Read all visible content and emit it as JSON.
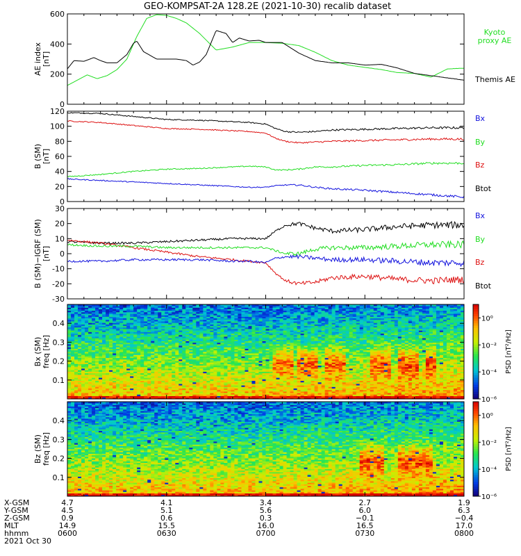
{
  "title": "GEO-KOMPSAT-2A 128.2E (2021-10-30) recalib dataset",
  "colors": {
    "black": "#000000",
    "green": "#20dd20",
    "red": "#dd1111",
    "blue": "#1111dd"
  },
  "chart_data": [
    {
      "type": "line",
      "panel": "ae",
      "ylabel": [
        "AE index",
        "[nT]"
      ],
      "ylim": [
        0,
        600
      ],
      "yticks": [
        0,
        200,
        400,
        600
      ],
      "legend": [
        {
          "label": [
            "Kyoto",
            "proxy AE"
          ],
          "color": "green"
        },
        {
          "label": [
            "Themis AE"
          ],
          "color": "black"
        }
      ],
      "series": [
        {
          "name": "Kyoto proxy AE",
          "color": "green",
          "x": [
            0,
            3,
            6,
            9,
            12,
            15,
            18,
            21,
            24,
            27,
            30,
            33,
            36,
            40,
            45,
            50,
            55,
            60,
            65,
            70,
            75,
            80,
            85,
            90,
            95,
            100,
            105,
            110,
            115,
            120
          ],
          "y": [
            125,
            160,
            195,
            170,
            190,
            230,
            300,
            450,
            570,
            595,
            590,
            570,
            540,
            470,
            360,
            380,
            410,
            410,
            405,
            390,
            345,
            290,
            260,
            245,
            230,
            210,
            205,
            180,
            235,
            240
          ]
        },
        {
          "name": "Themis AE",
          "color": "black",
          "x": [
            0,
            2,
            5,
            8,
            10,
            12,
            15,
            18,
            20,
            21,
            23,
            25,
            27,
            30,
            33,
            36,
            38,
            40,
            42,
            45,
            48,
            50,
            52,
            55,
            58,
            60,
            65,
            70,
            75,
            80,
            85,
            90,
            95,
            100,
            105,
            110,
            115,
            120
          ],
          "y": [
            235,
            290,
            285,
            310,
            290,
            275,
            275,
            330,
            405,
            420,
            350,
            325,
            300,
            300,
            300,
            290,
            260,
            280,
            330,
            490,
            470,
            410,
            440,
            420,
            425,
            410,
            410,
            340,
            290,
            275,
            275,
            260,
            265,
            240,
            205,
            190,
            175,
            160
          ]
        }
      ]
    },
    {
      "type": "line",
      "panel": "b",
      "ylabel": [
        "B (SM)",
        "[nT]"
      ],
      "ylim": [
        0,
        120
      ],
      "yticks": [
        0,
        20,
        40,
        60,
        80,
        100,
        120
      ],
      "legend": [
        {
          "label": [
            "Bx"
          ],
          "color": "blue"
        },
        {
          "label": [
            "By"
          ],
          "color": "green"
        },
        {
          "label": [
            "Bz"
          ],
          "color": "red"
        },
        {
          "label": [
            "Btot"
          ],
          "color": "black"
        }
      ],
      "series": [
        {
          "name": "Btot",
          "color": "black",
          "x": [
            0,
            10,
            20,
            30,
            40,
            50,
            55,
            60,
            63,
            66,
            70,
            75,
            80,
            90,
            100,
            110,
            120
          ],
          "y": [
            118,
            117,
            113,
            109,
            108,
            106,
            105,
            103,
            97,
            93,
            92,
            93,
            95,
            96,
            97,
            98,
            98
          ]
        },
        {
          "name": "Bz",
          "color": "red",
          "x": [
            0,
            10,
            20,
            30,
            40,
            50,
            55,
            60,
            63,
            66,
            70,
            75,
            80,
            90,
            100,
            110,
            120
          ],
          "y": [
            107,
            105,
            101,
            97,
            96,
            94,
            93,
            91,
            84,
            80,
            78,
            79,
            80,
            81,
            82,
            83,
            83
          ]
        },
        {
          "name": "By",
          "color": "green",
          "x": [
            0,
            10,
            20,
            30,
            40,
            50,
            55,
            60,
            63,
            66,
            70,
            75,
            80,
            90,
            100,
            110,
            120
          ],
          "y": [
            33,
            36,
            40,
            43,
            44,
            46,
            47,
            46,
            42,
            42,
            43,
            46,
            46,
            48,
            49,
            51,
            51
          ]
        },
        {
          "name": "Bx",
          "color": "blue",
          "x": [
            0,
            10,
            20,
            30,
            40,
            50,
            55,
            60,
            63,
            66,
            70,
            75,
            80,
            90,
            100,
            110,
            120
          ],
          "y": [
            30,
            28,
            26,
            24,
            22,
            20,
            19,
            19,
            21,
            22,
            22,
            19,
            17,
            15,
            12,
            9,
            6
          ]
        }
      ]
    },
    {
      "type": "line",
      "panel": "db",
      "ylabel": [
        "B (SM)−IGRF (SM)",
        "[nT]"
      ],
      "ylim": [
        -30,
        30
      ],
      "yticks": [
        -30,
        -20,
        -10,
        0,
        10,
        20,
        30
      ],
      "legend": [
        {
          "label": [
            "Bx"
          ],
          "color": "blue"
        },
        {
          "label": [
            "By"
          ],
          "color": "green"
        },
        {
          "label": [
            "Bz"
          ],
          "color": "red"
        },
        {
          "label": [
            "Btot"
          ],
          "color": "black"
        }
      ],
      "series": [
        {
          "name": "Btot",
          "color": "black",
          "x": [
            0,
            10,
            20,
            30,
            40,
            50,
            55,
            60,
            63,
            66,
            70,
            75,
            80,
            90,
            100,
            110,
            120
          ],
          "y": [
            8,
            7,
            7,
            8,
            9,
            10,
            10,
            10,
            15,
            19,
            20,
            17,
            15,
            16,
            18,
            19,
            19
          ]
        },
        {
          "name": "Bz",
          "color": "red",
          "x": [
            0,
            10,
            20,
            30,
            40,
            50,
            55,
            60,
            63,
            66,
            70,
            75,
            80,
            90,
            100,
            110,
            120
          ],
          "y": [
            9,
            7,
            4,
            1,
            -2,
            -4,
            -5,
            -6,
            -13,
            -18,
            -20,
            -19,
            -16,
            -15,
            -17,
            -18,
            -17
          ]
        },
        {
          "name": "By",
          "color": "green",
          "x": [
            0,
            10,
            20,
            30,
            40,
            50,
            55,
            60,
            63,
            66,
            70,
            75,
            80,
            90,
            100,
            110,
            120
          ],
          "y": [
            6,
            5,
            5,
            4,
            4,
            4,
            4,
            4,
            2,
            0,
            0,
            3,
            4,
            4,
            5,
            6,
            6
          ]
        },
        {
          "name": "Bx",
          "color": "blue",
          "x": [
            0,
            10,
            20,
            30,
            40,
            50,
            55,
            60,
            63,
            66,
            70,
            75,
            80,
            90,
            100,
            110,
            120
          ],
          "y": [
            -5,
            -5,
            -4,
            -4,
            -4,
            -5,
            -5,
            -6,
            -3,
            -2,
            -2,
            -3,
            -4,
            -4,
            -5,
            -6,
            -6
          ]
        }
      ]
    },
    {
      "type": "heatmap",
      "panel": "bx_spec",
      "ylabel": [
        "Bx (SM)",
        "freq [Hz]"
      ],
      "ylim": [
        0,
        0.5
      ],
      "yticks": [
        0.1,
        0.2,
        0.3,
        0.4
      ],
      "ytick_labels": [
        "0.1",
        "0.2",
        "0.3",
        "0.4"
      ],
      "colorbar_label": "PSD [nT²/Hz]",
      "colorbar_ticks": [
        "10⁰",
        "10⁻²",
        "10⁻⁴",
        "10⁻⁶"
      ],
      "log10_psd_range": [
        -6,
        1
      ],
      "active_intervals": [
        [
          62,
          68
        ],
        [
          70,
          76
        ],
        [
          78,
          84
        ],
        [
          92,
          98
        ],
        [
          100,
          106
        ],
        [
          108,
          112
        ]
      ]
    },
    {
      "type": "heatmap",
      "panel": "bz_spec",
      "ylabel": [
        "Bz (SM)",
        "freq [Hz]"
      ],
      "ylim": [
        0,
        0.5
      ],
      "yticks": [
        0.1,
        0.2,
        0.3,
        0.4
      ],
      "ytick_labels": [
        "0.1",
        "0.2",
        "0.3",
        "0.4"
      ],
      "colorbar_label": "PSD [nT²/Hz]",
      "colorbar_ticks": [
        "10⁰",
        "10⁻²",
        "10⁻⁴",
        "10⁻⁶"
      ],
      "log10_psd_range": [
        -6,
        1
      ],
      "active_intervals": [
        [
          88,
          96
        ],
        [
          100,
          110
        ]
      ]
    }
  ],
  "xaxis": {
    "range_minutes": [
      0,
      120
    ],
    "tick_positions": [
      0,
      30,
      60,
      90,
      120
    ],
    "rows": [
      {
        "label": "X-GSM",
        "values": [
          "4.7",
          "4.1",
          "3.4",
          "2.7",
          "1.9"
        ]
      },
      {
        "label": "Y-GSM",
        "values": [
          "4.5",
          "5.1",
          "5.6",
          "6.0",
          "6.3"
        ]
      },
      {
        "label": "Z-GSM",
        "values": [
          "0.9",
          "0.6",
          "0.3",
          "−0.1",
          "−0.4"
        ]
      },
      {
        "label": "MLT",
        "values": [
          "14.9",
          "15.5",
          "16.0",
          "16.5",
          "17.0"
        ]
      },
      {
        "label": "hhmm",
        "values": [
          "0600",
          "0630",
          "0700",
          "0730",
          "0800"
        ]
      }
    ],
    "date": "2021 Oct 30"
  }
}
